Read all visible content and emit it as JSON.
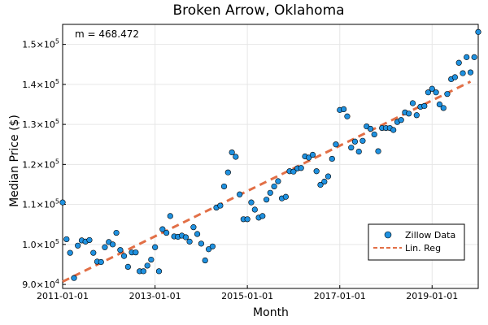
{
  "chart_data": {
    "type": "scatter",
    "title": "Broken Arrow, Oklahoma",
    "xlabel": "Month",
    "ylabel": "Median Price ($)",
    "annotation": "m = 468.472",
    "x_type": "date",
    "xlim": [
      "2011-01-01",
      "2020-01-01"
    ],
    "ylim": [
      89000,
      155000
    ],
    "xticks": [
      {
        "value": "2011-01-01",
        "label": "2011-01-01"
      },
      {
        "value": "2013-01-01",
        "label": "2013-01-01"
      },
      {
        "value": "2015-01-01",
        "label": "2015-01-01"
      },
      {
        "value": "2017-01-01",
        "label": "2017-01-01"
      },
      {
        "value": "2019-01-01",
        "label": "2019-01-01"
      }
    ],
    "yticks": [
      {
        "value": 90000,
        "mantissa": "9.0",
        "exp": "4"
      },
      {
        "value": 100000,
        "mantissa": "1.0",
        "exp": "5"
      },
      {
        "value": 110000,
        "mantissa": "1.1",
        "exp": "5"
      },
      {
        "value": 120000,
        "mantissa": "1.2",
        "exp": "5"
      },
      {
        "value": 130000,
        "mantissa": "1.3",
        "exp": "5"
      },
      {
        "value": 140000,
        "mantissa": "1.4",
        "exp": "5"
      },
      {
        "value": 150000,
        "mantissa": "1.5",
        "exp": "5"
      }
    ],
    "grid": true,
    "legend_position": "bottom-right",
    "series": [
      {
        "name": "Zillow Data",
        "kind": "scatter",
        "color": "#1f91e0",
        "start": "2011-01",
        "frequency": "monthly",
        "values": [
          110500,
          101300,
          97900,
          91600,
          99700,
          101000,
          100700,
          101100,
          97900,
          95700,
          95600,
          99300,
          100600,
          100000,
          102900,
          98600,
          97100,
          94400,
          98000,
          98000,
          93300,
          93300,
          94700,
          96200,
          99300,
          93300,
          103800,
          102900,
          107100,
          102000,
          101900,
          102200,
          101800,
          100700,
          104300,
          102600,
          100200,
          96000,
          98800,
          99500,
          109200,
          109700,
          114500,
          118000,
          123000,
          121900,
          112500,
          106300,
          106300,
          110500,
          108700,
          106700,
          107100,
          111200,
          112900,
          114500,
          115800,
          111500,
          111900,
          118300,
          118200,
          119000,
          119100,
          122000,
          121700,
          122400,
          118300,
          114900,
          115700,
          117000,
          121400,
          125000,
          133600,
          133800,
          132000,
          124200,
          125700,
          123200,
          125900,
          129500,
          128900,
          127500,
          123300,
          129100,
          129100,
          129100,
          128600,
          130600,
          131100,
          133000,
          132700,
          135300,
          132300,
          134400,
          134600,
          138000,
          138900,
          138000,
          135000,
          134100,
          137600,
          141300,
          141800,
          145400,
          142800,
          146800,
          143000,
          146800,
          153100
        ]
      },
      {
        "name": "Lin. Reg",
        "kind": "line",
        "color": "#e26f46",
        "dash": "dashed",
        "slope_per_month": 468.472,
        "x": [
          "2011-01-01",
          "2019-11-01"
        ],
        "y": [
          90700,
          140700
        ]
      }
    ]
  }
}
